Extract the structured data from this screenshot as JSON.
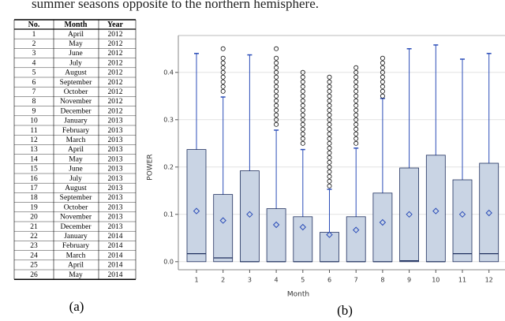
{
  "text_line": "summer seasons opposite to the northern hemisphere.",
  "table": {
    "columns": [
      "No.",
      "Month",
      "Year"
    ],
    "rows": [
      [
        "1",
        "April",
        "2012"
      ],
      [
        "2",
        "May",
        "2012"
      ],
      [
        "3",
        "June",
        "2012"
      ],
      [
        "4",
        "July",
        "2012"
      ],
      [
        "5",
        "August",
        "2012"
      ],
      [
        "6",
        "September",
        "2012"
      ],
      [
        "7",
        "October",
        "2012"
      ],
      [
        "8",
        "November",
        "2012"
      ],
      [
        "9",
        "December",
        "2012"
      ],
      [
        "10",
        "January",
        "2013"
      ],
      [
        "11",
        "February",
        "2013"
      ],
      [
        "12",
        "March",
        "2013"
      ],
      [
        "13",
        "April",
        "2013"
      ],
      [
        "14",
        "May",
        "2013"
      ],
      [
        "15",
        "June",
        "2013"
      ],
      [
        "16",
        "July",
        "2013"
      ],
      [
        "17",
        "August",
        "2013"
      ],
      [
        "18",
        "September",
        "2013"
      ],
      [
        "19",
        "October",
        "2013"
      ],
      [
        "20",
        "November",
        "2013"
      ],
      [
        "21",
        "December",
        "2013"
      ],
      [
        "22",
        "January",
        "2014"
      ],
      [
        "23",
        "February",
        "2014"
      ],
      [
        "24",
        "March",
        "2014"
      ],
      [
        "25",
        "April",
        "2014"
      ],
      [
        "26",
        "May",
        "2014"
      ]
    ],
    "caption": "(a)"
  },
  "chart_data": {
    "type": "box",
    "caption": "(b)",
    "x_label": "Month",
    "y_label": "POWER",
    "categories": [
      "1",
      "2",
      "3",
      "4",
      "5",
      "6",
      "7",
      "8",
      "9",
      "10",
      "11",
      "12"
    ],
    "box_color": "#c9d4e4",
    "edge_color": "#1f2f5e",
    "whisker_color": "#2b4db8",
    "grid": true,
    "ylim": [
      -0.017,
      0.478
    ],
    "yticks": [
      {
        "value": 0,
        "label": "0.0"
      },
      0.1,
      0.2,
      0.3,
      0.4
    ],
    "boxes": [
      {
        "low": 0,
        "q1": 0,
        "median": 0.017,
        "q3": 0.237,
        "high": 0.44,
        "mean": 0.107,
        "outliers": []
      },
      {
        "low": 0,
        "q1": 0,
        "median": 0.008,
        "q3": 0.142,
        "high": 0.348,
        "mean": 0.087,
        "outliers": [
          0.36,
          0.37,
          0.38,
          0.39,
          0.4,
          0.41,
          0.42,
          0.43,
          0.45
        ]
      },
      {
        "low": 0,
        "q1": 0,
        "median": 0,
        "q3": 0.192,
        "high": 0.437,
        "mean": 0.1,
        "outliers": []
      },
      {
        "low": 0,
        "q1": 0,
        "median": 0,
        "q3": 0.112,
        "high": 0.278,
        "mean": 0.078,
        "outliers": [
          0.29,
          0.3,
          0.31,
          0.32,
          0.33,
          0.34,
          0.35,
          0.36,
          0.37,
          0.38,
          0.39,
          0.4,
          0.41,
          0.42,
          0.43,
          0.45
        ]
      },
      {
        "low": 0,
        "q1": 0,
        "median": 0,
        "q3": 0.095,
        "high": 0.237,
        "mean": 0.073,
        "outliers": [
          0.25,
          0.26,
          0.27,
          0.28,
          0.29,
          0.3,
          0.31,
          0.32,
          0.33,
          0.34,
          0.35,
          0.36,
          0.37,
          0.38,
          0.39,
          0.4
        ]
      },
      {
        "low": 0,
        "q1": 0,
        "median": 0,
        "q3": 0.062,
        "high": 0.153,
        "mean": 0.057,
        "outliers": [
          0.16,
          0.17,
          0.18,
          0.19,
          0.2,
          0.21,
          0.22,
          0.23,
          0.24,
          0.25,
          0.26,
          0.27,
          0.28,
          0.29,
          0.3,
          0.31,
          0.32,
          0.33,
          0.34,
          0.35,
          0.36,
          0.37,
          0.38,
          0.39
        ]
      },
      {
        "low": 0,
        "q1": 0,
        "median": 0,
        "q3": 0.095,
        "high": 0.24,
        "mean": 0.067,
        "outliers": [
          0.25,
          0.26,
          0.27,
          0.28,
          0.29,
          0.3,
          0.31,
          0.32,
          0.33,
          0.34,
          0.35,
          0.36,
          0.37,
          0.38,
          0.39,
          0.4,
          0.41
        ]
      },
      {
        "low": 0,
        "q1": 0,
        "median": 0,
        "q3": 0.145,
        "high": 0.345,
        "mean": 0.083,
        "outliers": [
          0.35,
          0.36,
          0.37,
          0.38,
          0.39,
          0.4,
          0.41,
          0.42,
          0.43
        ]
      },
      {
        "low": 0,
        "q1": 0,
        "median": 0.002,
        "q3": 0.198,
        "high": 0.45,
        "mean": 0.1,
        "outliers": []
      },
      {
        "low": 0,
        "q1": 0,
        "median": 0,
        "q3": 0.225,
        "high": 0.458,
        "mean": 0.107,
        "outliers": []
      },
      {
        "low": 0,
        "q1": 0,
        "median": 0.017,
        "q3": 0.173,
        "high": 0.428,
        "mean": 0.1,
        "outliers": []
      },
      {
        "low": 0,
        "q1": 0,
        "median": 0.017,
        "q3": 0.208,
        "high": 0.44,
        "mean": 0.103,
        "outliers": []
      }
    ]
  }
}
